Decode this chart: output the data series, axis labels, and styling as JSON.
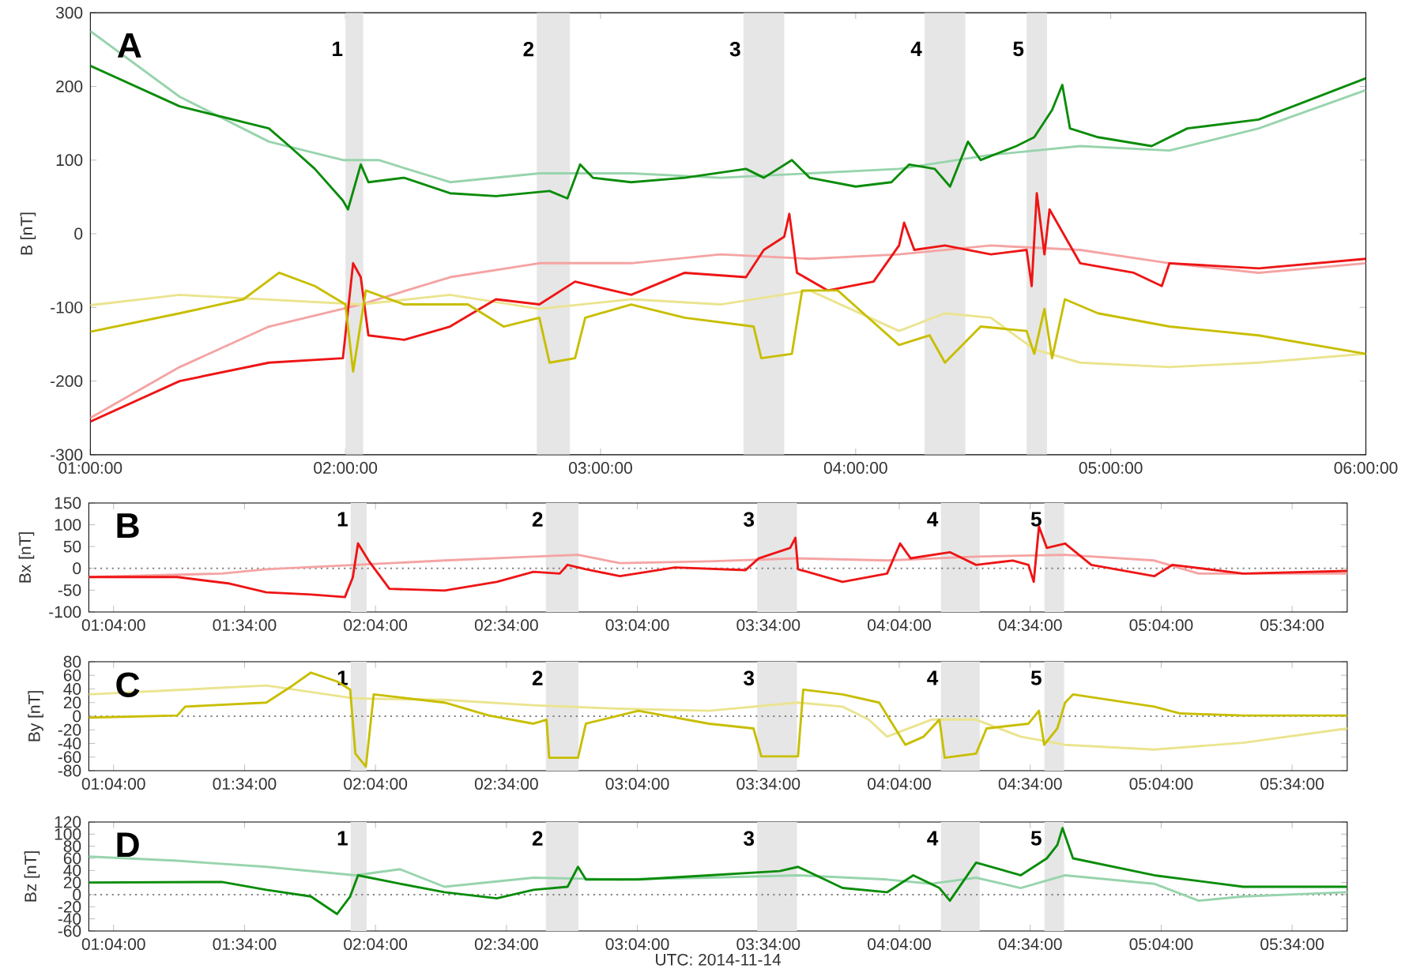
{
  "chart_data": [
    {
      "type": "line",
      "ylabel": "B [nT]",
      "annotations": [
        "A"
      ],
      "xlim": [
        1,
        6
      ],
      "ylim": [
        -300,
        300
      ],
      "xticks": [
        {
          "value": 1,
          "label": "01:00:00"
        },
        {
          "value": 2,
          "label": "02:00:00"
        },
        {
          "value": 3,
          "label": "03:00:00"
        },
        {
          "value": 4,
          "label": "04:00:00"
        },
        {
          "value": 5,
          "label": "05:00:00"
        },
        {
          "value": 6,
          "label": "06:00:00"
        }
      ],
      "yticks": [
        -300,
        -200,
        -100,
        0,
        100,
        200,
        300
      ],
      "bands": [
        {
          "axis": "x",
          "from": 2.0,
          "to": 2.07,
          "label": "1",
          "color": "#e6e6e6"
        },
        {
          "axis": "x",
          "from": 2.75,
          "to": 2.88,
          "label": "2",
          "color": "#e6e6e6"
        },
        {
          "axis": "x",
          "from": 3.56,
          "to": 3.72,
          "label": "3",
          "color": "#e6e6e6"
        },
        {
          "axis": "x",
          "from": 4.27,
          "to": 4.43,
          "label": "4",
          "color": "#e6e6e6"
        },
        {
          "axis": "x",
          "from": 4.67,
          "to": 4.75,
          "label": "5",
          "color": "#e6e6e6"
        }
      ],
      "series": [
        {
          "color": "#98d4ad",
          "x": [
            1.0,
            1.35,
            1.7,
            1.99,
            2.13,
            2.41,
            2.76,
            3.12,
            3.47,
            3.82,
            4.17,
            4.53,
            4.88,
            5.23,
            5.58,
            6.0
          ],
          "values": [
            275,
            186,
            125,
            100,
            100,
            70,
            82,
            82,
            76,
            82,
            88,
            107,
            119,
            113,
            143,
            195
          ]
        },
        {
          "color": "#f5a3a3",
          "x": [
            1.0,
            1.35,
            1.7,
            2.06,
            2.41,
            2.76,
            3.12,
            3.47,
            3.82,
            4.17,
            4.53,
            4.88,
            5.23,
            5.58,
            6.0
          ],
          "values": [
            -250,
            -181,
            -126,
            -96,
            -59,
            -40,
            -40,
            -28,
            -34,
            -28,
            -16,
            -22,
            -40,
            -53,
            -40
          ]
        },
        {
          "color": "#ebe48f",
          "x": [
            1.0,
            1.35,
            2.06,
            2.41,
            2.76,
            3.12,
            3.47,
            3.82,
            4.17,
            4.35,
            4.53,
            4.7,
            4.88,
            5.23,
            5.58,
            6.0
          ],
          "values": [
            -97,
            -83,
            -96,
            -83,
            -102,
            -89,
            -96,
            -77,
            -132,
            -108,
            -114,
            -157,
            -175,
            -181,
            -175,
            -163
          ]
        },
        {
          "color": "#0a8c0a",
          "x": [
            1.0,
            1.35,
            1.7,
            1.78,
            1.88,
            1.99,
            2.01,
            2.06,
            2.09,
            2.23,
            2.41,
            2.59,
            2.8,
            2.87,
            2.92,
            2.97,
            3.12,
            3.33,
            3.57,
            3.64,
            3.75,
            3.82,
            4.0,
            4.14,
            4.21,
            4.31,
            4.37,
            4.44,
            4.49,
            4.63,
            4.7,
            4.77,
            4.81,
            4.84,
            4.95,
            5.16,
            5.3,
            5.58,
            6.0
          ],
          "values": [
            228,
            173,
            143,
            119,
            88,
            45,
            33,
            94,
            70,
            76,
            55,
            51,
            58,
            48,
            94,
            76,
            70,
            76,
            88,
            76,
            100,
            76,
            64,
            70,
            94,
            88,
            64,
            125,
            100,
            119,
            131,
            168,
            202,
            143,
            131,
            119,
            143,
            155,
            211
          ]
        },
        {
          "color": "#ee1515",
          "x": [
            1.0,
            1.35,
            1.7,
            1.99,
            2.03,
            2.06,
            2.09,
            2.23,
            2.41,
            2.59,
            2.76,
            2.9,
            3.12,
            3.33,
            3.57,
            3.64,
            3.72,
            3.74,
            3.77,
            3.89,
            4.07,
            4.17,
            4.19,
            4.23,
            4.35,
            4.53,
            4.67,
            4.69,
            4.71,
            4.74,
            4.76,
            4.88,
            5.09,
            5.2,
            5.23,
            5.58,
            6.0
          ],
          "values": [
            -255,
            -200,
            -175,
            -169,
            -40,
            -59,
            -138,
            -144,
            -126,
            -89,
            -96,
            -65,
            -83,
            -53,
            -59,
            -22,
            -4,
            27,
            -53,
            -77,
            -65,
            -16,
            15,
            -22,
            -16,
            -28,
            -22,
            -71,
            55,
            -28,
            33,
            -40,
            -53,
            -71,
            -40,
            -47,
            -34
          ]
        },
        {
          "color": "#c8be00",
          "x": [
            1.0,
            1.35,
            1.6,
            1.74,
            1.88,
            2.0,
            2.03,
            2.08,
            2.23,
            2.48,
            2.62,
            2.76,
            2.8,
            2.9,
            2.94,
            3.12,
            3.33,
            3.6,
            3.63,
            3.75,
            3.79,
            3.93,
            4.03,
            4.17,
            4.29,
            4.35,
            4.49,
            4.67,
            4.7,
            4.74,
            4.77,
            4.82,
            4.95,
            5.23,
            5.58,
            6.0
          ],
          "values": [
            -133,
            -108,
            -89,
            -53,
            -71,
            -96,
            -187,
            -77,
            -96,
            -96,
            -126,
            -114,
            -175,
            -169,
            -114,
            -96,
            -114,
            -126,
            -169,
            -163,
            -77,
            -77,
            -108,
            -151,
            -138,
            -175,
            -126,
            -132,
            -163,
            -102,
            -169,
            -89,
            -108,
            -126,
            -138,
            -163
          ]
        }
      ]
    },
    {
      "type": "line",
      "ylabel": "Bx [nT]",
      "annotations": [
        "B"
      ],
      "xlim": [
        0.972,
        5.777
      ],
      "ylim": [
        -100,
        150
      ],
      "xticks": [
        {
          "value": 1.0667,
          "label": "01:04:00"
        },
        {
          "value": 1.5667,
          "label": "01:34:00"
        },
        {
          "value": 2.0667,
          "label": "02:04:00"
        },
        {
          "value": 2.5667,
          "label": "02:34:00"
        },
        {
          "value": 3.0667,
          "label": "03:04:00"
        },
        {
          "value": 3.5667,
          "label": "03:34:00"
        },
        {
          "value": 4.0667,
          "label": "04:04:00"
        },
        {
          "value": 4.5667,
          "label": "04:34:00"
        },
        {
          "value": 5.0667,
          "label": "05:04:00"
        },
        {
          "value": 5.5667,
          "label": "05:34:00"
        }
      ],
      "yticks": [
        -100,
        -50,
        0,
        50,
        100,
        150
      ],
      "ref_lines": [
        {
          "axis": "y",
          "value": 0,
          "color": "#808080",
          "line_style": "dotted"
        }
      ],
      "bands": [
        {
          "axis": "x",
          "from": 1.972,
          "to": 2.033,
          "label": "1",
          "color": "#e6e6e6"
        },
        {
          "axis": "x",
          "from": 2.717,
          "to": 2.842,
          "label": "2",
          "color": "#e6e6e6"
        },
        {
          "axis": "x",
          "from": 3.524,
          "to": 3.676,
          "label": "3",
          "color": "#e6e6e6"
        },
        {
          "axis": "x",
          "from": 4.225,
          "to": 4.374,
          "label": "4",
          "color": "#e6e6e6"
        },
        {
          "axis": "x",
          "from": 4.621,
          "to": 4.696,
          "label": "5",
          "color": "#e6e6e6"
        }
      ],
      "series": [
        {
          "color": "#f5a3a3",
          "x": [
            0.972,
            1.48,
            1.65,
            1.99,
            2.33,
            2.67,
            2.84,
            3.0,
            3.34,
            3.68,
            4.02,
            4.36,
            4.7,
            5.04,
            5.21,
            5.777
          ],
          "values": [
            -20,
            -12,
            -2,
            8,
            18,
            27,
            31,
            12,
            16,
            23,
            18,
            27,
            31,
            18,
            -12,
            -12
          ]
        },
        {
          "color": "#ee1515",
          "x": [
            0.972,
            1.31,
            1.51,
            1.65,
            1.82,
            1.95,
            1.98,
            2.0,
            2.04,
            2.12,
            2.33,
            2.53,
            2.67,
            2.77,
            2.8,
            2.87,
            3.0,
            3.21,
            3.48,
            3.53,
            3.65,
            3.67,
            3.68,
            3.85,
            4.02,
            4.07,
            4.11,
            4.26,
            4.36,
            4.5,
            4.56,
            4.58,
            4.6,
            4.63,
            4.7,
            4.8,
            5.04,
            5.11,
            5.38,
            5.777
          ],
          "values": [
            -20,
            -20,
            -35,
            -55,
            -60,
            -66,
            -21,
            57,
            18,
            -47,
            -51,
            -31,
            -8,
            -12,
            8,
            -2,
            -18,
            2,
            -4,
            23,
            47,
            70,
            -2,
            -31,
            -12,
            57,
            23,
            37,
            8,
            18,
            8,
            -31,
            96,
            47,
            57,
            8,
            -18,
            8,
            -12,
            -6
          ]
        }
      ]
    },
    {
      "type": "line",
      "ylabel": "By [nT]",
      "annotations": [
        "C"
      ],
      "xlim": [
        0.972,
        5.777
      ],
      "ylim": [
        -80,
        80
      ],
      "xticks": [
        {
          "value": 1.0667,
          "label": "01:04:00"
        },
        {
          "value": 1.5667,
          "label": "01:34:00"
        },
        {
          "value": 2.0667,
          "label": "02:04:00"
        },
        {
          "value": 2.5667,
          "label": "02:34:00"
        },
        {
          "value": 3.0667,
          "label": "03:04:00"
        },
        {
          "value": 3.5667,
          "label": "03:34:00"
        },
        {
          "value": 4.0667,
          "label": "04:04:00"
        },
        {
          "value": 4.5667,
          "label": "04:34:00"
        },
        {
          "value": 5.0667,
          "label": "05:04:00"
        },
        {
          "value": 5.5667,
          "label": "05:34:00"
        }
      ],
      "yticks": [
        -80,
        -60,
        -40,
        -20,
        0,
        20,
        40,
        60,
        80
      ],
      "ref_lines": [
        {
          "axis": "y",
          "value": 0,
          "color": "#808080",
          "line_style": "dotted"
        }
      ],
      "bands": [
        {
          "axis": "x",
          "from": 1.972,
          "to": 2.033,
          "label": "1",
          "color": "#e6e6e6"
        },
        {
          "axis": "x",
          "from": 2.717,
          "to": 2.842,
          "label": "2",
          "color": "#e6e6e6"
        },
        {
          "axis": "x",
          "from": 3.524,
          "to": 3.676,
          "label": "3",
          "color": "#e6e6e6"
        },
        {
          "axis": "x",
          "from": 4.225,
          "to": 4.374,
          "label": "4",
          "color": "#e6e6e6"
        },
        {
          "axis": "x",
          "from": 4.621,
          "to": 4.696,
          "label": "5",
          "color": "#e6e6e6"
        }
      ],
      "series": [
        {
          "color": "#ebe48f",
          "x": [
            0.972,
            1.65,
            1.99,
            2.33,
            2.67,
            3.0,
            3.34,
            3.68,
            3.85,
            3.95,
            4.02,
            4.19,
            4.36,
            4.53,
            4.7,
            5.04,
            5.38,
            5.777
          ],
          "values": [
            32,
            45,
            26,
            24,
            16,
            11,
            8,
            20,
            14,
            -5,
            -30,
            -5,
            -5,
            -30,
            -42,
            -49,
            -39,
            -18
          ]
        },
        {
          "color": "#c8be00",
          "x": [
            0.972,
            1.31,
            1.34,
            1.65,
            1.75,
            1.82,
            1.92,
            1.97,
            1.99,
            2.03,
            2.06,
            2.33,
            2.5,
            2.67,
            2.72,
            2.73,
            2.84,
            2.87,
            3.07,
            3.34,
            3.51,
            3.54,
            3.68,
            3.7,
            3.85,
            3.99,
            4.09,
            4.16,
            4.22,
            4.24,
            4.36,
            4.4,
            4.56,
            4.6,
            4.62,
            4.67,
            4.7,
            4.73,
            5.04,
            5.14,
            5.38,
            5.777
          ],
          "values": [
            -2,
            1,
            14,
            20,
            45,
            64,
            51,
            39,
            -55,
            -74,
            32,
            20,
            1,
            -11,
            -5,
            -61,
            -61,
            -11,
            8,
            -11,
            -18,
            -59,
            -59,
            39,
            32,
            20,
            -42,
            -30,
            -5,
            -61,
            -55,
            -18,
            -11,
            8,
            -42,
            -18,
            20,
            32,
            14,
            4,
            1,
            1
          ]
        }
      ]
    },
    {
      "type": "line",
      "ylabel": "Bz [nT]",
      "xlabel": "UTC: 2014-11-14",
      "annotations": [
        "D"
      ],
      "xlim": [
        0.972,
        5.777
      ],
      "ylim": [
        -60,
        120
      ],
      "xticks": [
        {
          "value": 1.0667,
          "label": "01:04:00"
        },
        {
          "value": 1.5667,
          "label": "01:34:00"
        },
        {
          "value": 2.0667,
          "label": "02:04:00"
        },
        {
          "value": 2.5667,
          "label": "02:34:00"
        },
        {
          "value": 3.0667,
          "label": "03:04:00"
        },
        {
          "value": 3.5667,
          "label": "03:34:00"
        },
        {
          "value": 4.0667,
          "label": "04:04:00"
        },
        {
          "value": 4.5667,
          "label": "04:34:00"
        },
        {
          "value": 5.0667,
          "label": "05:04:00"
        },
        {
          "value": 5.5667,
          "label": "05:34:00"
        }
      ],
      "yticks": [
        -60,
        -40,
        -20,
        0,
        20,
        40,
        60,
        80,
        100,
        120
      ],
      "ref_lines": [
        {
          "axis": "y",
          "value": 0,
          "color": "#808080",
          "line_style": "dotted"
        }
      ],
      "bands": [
        {
          "axis": "x",
          "from": 1.972,
          "to": 2.033,
          "label": "1",
          "color": "#e6e6e6"
        },
        {
          "axis": "x",
          "from": 2.717,
          "to": 2.842,
          "label": "2",
          "color": "#e6e6e6"
        },
        {
          "axis": "x",
          "from": 3.524,
          "to": 3.676,
          "label": "3",
          "color": "#e6e6e6"
        },
        {
          "axis": "x",
          "from": 4.225,
          "to": 4.374,
          "label": "4",
          "color": "#e6e6e6"
        },
        {
          "axis": "x",
          "from": 4.621,
          "to": 4.696,
          "label": "5",
          "color": "#e6e6e6"
        }
      ],
      "series": [
        {
          "color": "#98d4ad",
          "x": [
            0.972,
            1.31,
            1.65,
            1.99,
            2.16,
            2.33,
            2.67,
            3.0,
            3.34,
            3.68,
            4.02,
            4.19,
            4.36,
            4.53,
            4.7,
            5.04,
            5.21,
            5.38,
            5.777
          ],
          "values": [
            63,
            56,
            46,
            32,
            42,
            13,
            28,
            25,
            28,
            32,
            25,
            18,
            28,
            11,
            32,
            18,
            -10,
            -3,
            4
          ]
        },
        {
          "color": "#0a8c0a",
          "x": [
            0.972,
            1.48,
            1.65,
            1.82,
            1.92,
            1.97,
            2.0,
            2.16,
            2.33,
            2.53,
            2.67,
            2.8,
            2.84,
            2.87,
            3.07,
            3.34,
            3.61,
            3.68,
            3.85,
            4.02,
            4.12,
            4.22,
            4.26,
            4.36,
            4.53,
            4.63,
            4.67,
            4.69,
            4.73,
            5.04,
            5.38,
            5.777
          ],
          "values": [
            20,
            21,
            8,
            -3,
            -32,
            -3,
            32,
            18,
            4,
            -6,
            8,
            13,
            46,
            25,
            25,
            32,
            39,
            46,
            11,
            4,
            32,
            11,
            -10,
            53,
            32,
            60,
            82,
            110,
            60,
            32,
            13,
            13
          ]
        }
      ]
    }
  ]
}
